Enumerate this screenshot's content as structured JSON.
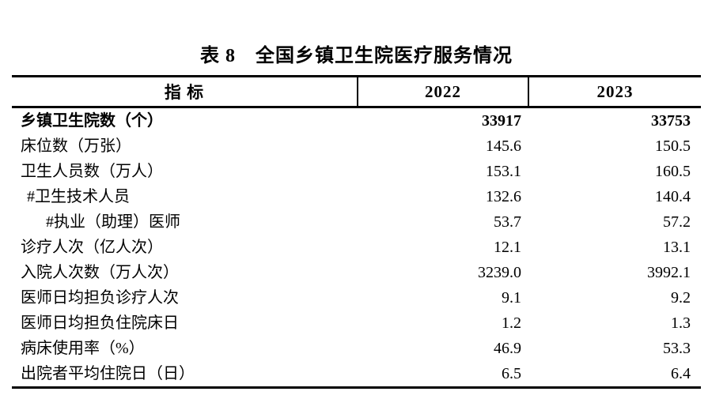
{
  "page": {
    "background": "#ffffff",
    "text_color": "#000000",
    "border_color": "#000000"
  },
  "table": {
    "title": "表 8　全国乡镇卫生院医疗服务情况",
    "columns": [
      "指 标",
      "2022",
      "2023"
    ],
    "rows": [
      {
        "indicator": "乡镇卫生院数（个）",
        "v2022": "33917",
        "v2023": "33753",
        "bold": true,
        "indent": 0
      },
      {
        "indicator": "床位数（万张）",
        "v2022": "145.6",
        "v2023": "150.5",
        "bold": false,
        "indent": 0
      },
      {
        "indicator": "卫生人员数（万人）",
        "v2022": "153.1",
        "v2023": "160.5",
        "bold": false,
        "indent": 0
      },
      {
        "indicator": "#卫生技术人员",
        "v2022": "132.6",
        "v2023": "140.4",
        "bold": false,
        "indent": 1
      },
      {
        "indicator": "#执业（助理）医师",
        "v2022": "53.7",
        "v2023": "57.2",
        "bold": false,
        "indent": 2
      },
      {
        "indicator": "诊疗人次（亿人次）",
        "v2022": "12.1",
        "v2023": "13.1",
        "bold": false,
        "indent": 0
      },
      {
        "indicator": "入院人次数（万人次）",
        "v2022": "3239.0",
        "v2023": "3992.1",
        "bold": false,
        "indent": 0
      },
      {
        "indicator": "医师日均担负诊疗人次",
        "v2022": "9.1",
        "v2023": "9.2",
        "bold": false,
        "indent": 0
      },
      {
        "indicator": "医师日均担负住院床日",
        "v2022": "1.2",
        "v2023": "1.3",
        "bold": false,
        "indent": 0
      },
      {
        "indicator": "病床使用率（%）",
        "v2022": "46.9",
        "v2023": "53.3",
        "bold": false,
        "indent": 0
      },
      {
        "indicator": "出院者平均住院日（日）",
        "v2022": "6.5",
        "v2023": "6.4",
        "bold": false,
        "indent": 0
      }
    ]
  }
}
